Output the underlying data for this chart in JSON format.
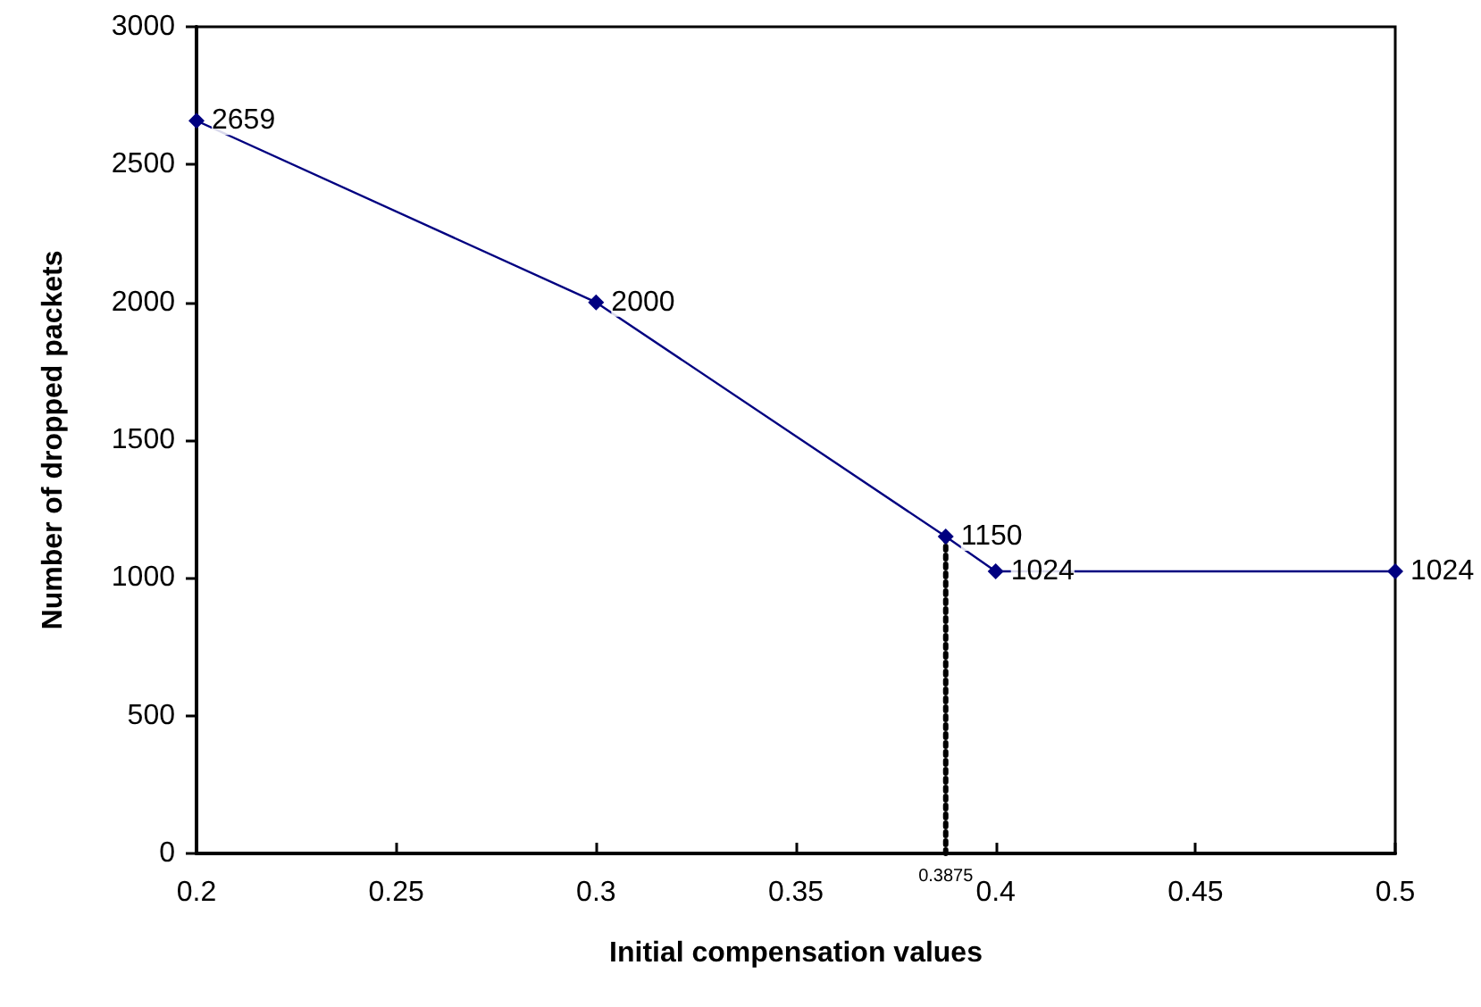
{
  "chart_data": {
    "type": "line",
    "xlabel": "Initial compensation values",
    "ylabel": "Number of dropped packets",
    "xlim": [
      0.2,
      0.5
    ],
    "xticks": [
      0.2,
      0.25,
      0.3,
      0.35,
      0.4,
      0.45,
      0.5
    ],
    "ylim": [
      0,
      3000
    ],
    "yticks": [
      0,
      500,
      1000,
      1500,
      2000,
      2500,
      3000
    ],
    "grid": false,
    "marker": "diamond",
    "line_style": "solid",
    "series": [
      {
        "color": "#000080",
        "x": [
          0.2,
          0.3,
          0.3875,
          0.4,
          0.5
        ],
        "values": [
          2659,
          2000,
          1150,
          1024,
          1024
        ],
        "data_labels": true
      },
      {
        "color": "#000000",
        "x": [
          0.3875,
          0.3875
        ],
        "values": [
          0,
          1150
        ],
        "marker": "none",
        "line_style": "dotted"
      }
    ],
    "annotations": [
      {
        "text": "0.3875",
        "x": 0.3875,
        "y": 0
      }
    ]
  }
}
